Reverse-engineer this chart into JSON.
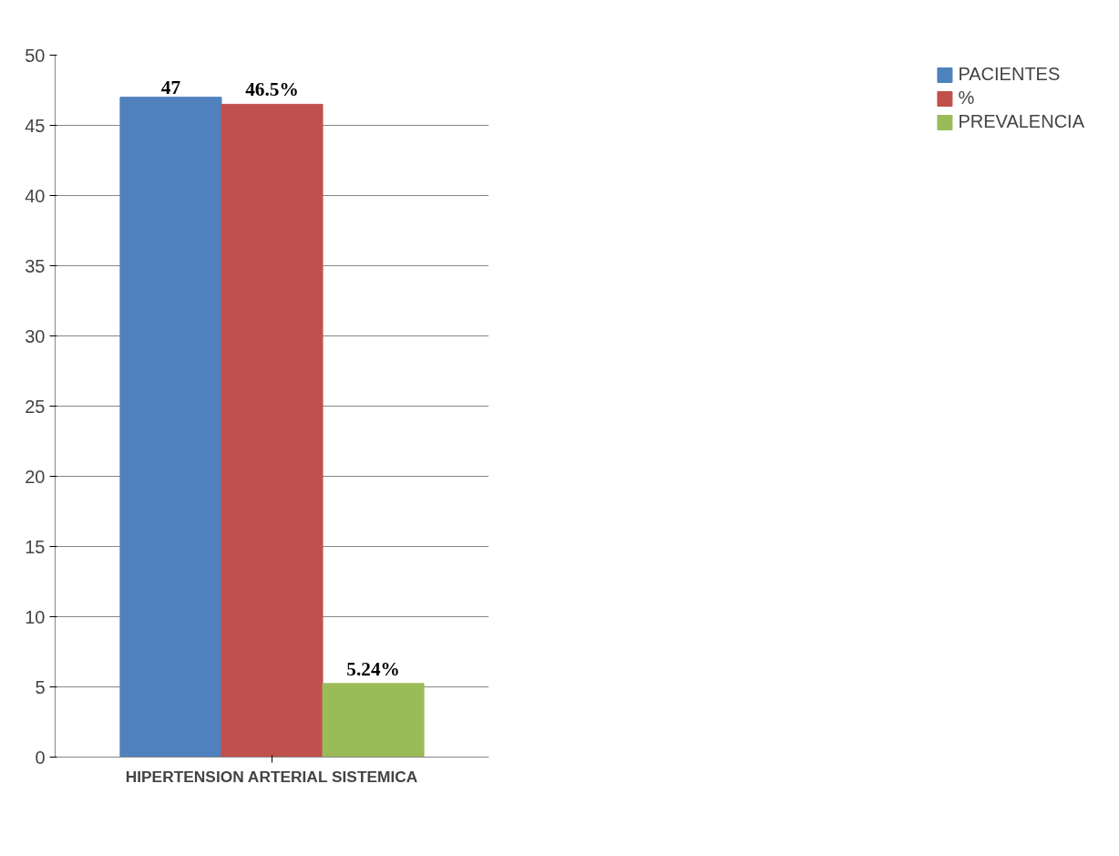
{
  "chart_data": {
    "type": "bar",
    "categories": [
      "HIPERTENSION ARTERIAL SISTEMICA"
    ],
    "series": [
      {
        "name": "PACIENTES",
        "color": "#4f81bd",
        "values": [
          47
        ],
        "value_labels": [
          "47"
        ]
      },
      {
        "name": "%",
        "color": "#c0504d",
        "values": [
          46.5
        ],
        "value_labels": [
          "46.5%"
        ]
      },
      {
        "name": "PREVALENCIA",
        "color": "#9bbb59",
        "values": [
          5.24
        ],
        "value_labels": [
          "5.24%"
        ]
      }
    ],
    "ylim": [
      0,
      50
    ],
    "yticks": [
      0,
      5,
      10,
      15,
      20,
      25,
      30,
      35,
      40,
      45,
      50
    ],
    "grid": "y",
    "legend": "right"
  }
}
